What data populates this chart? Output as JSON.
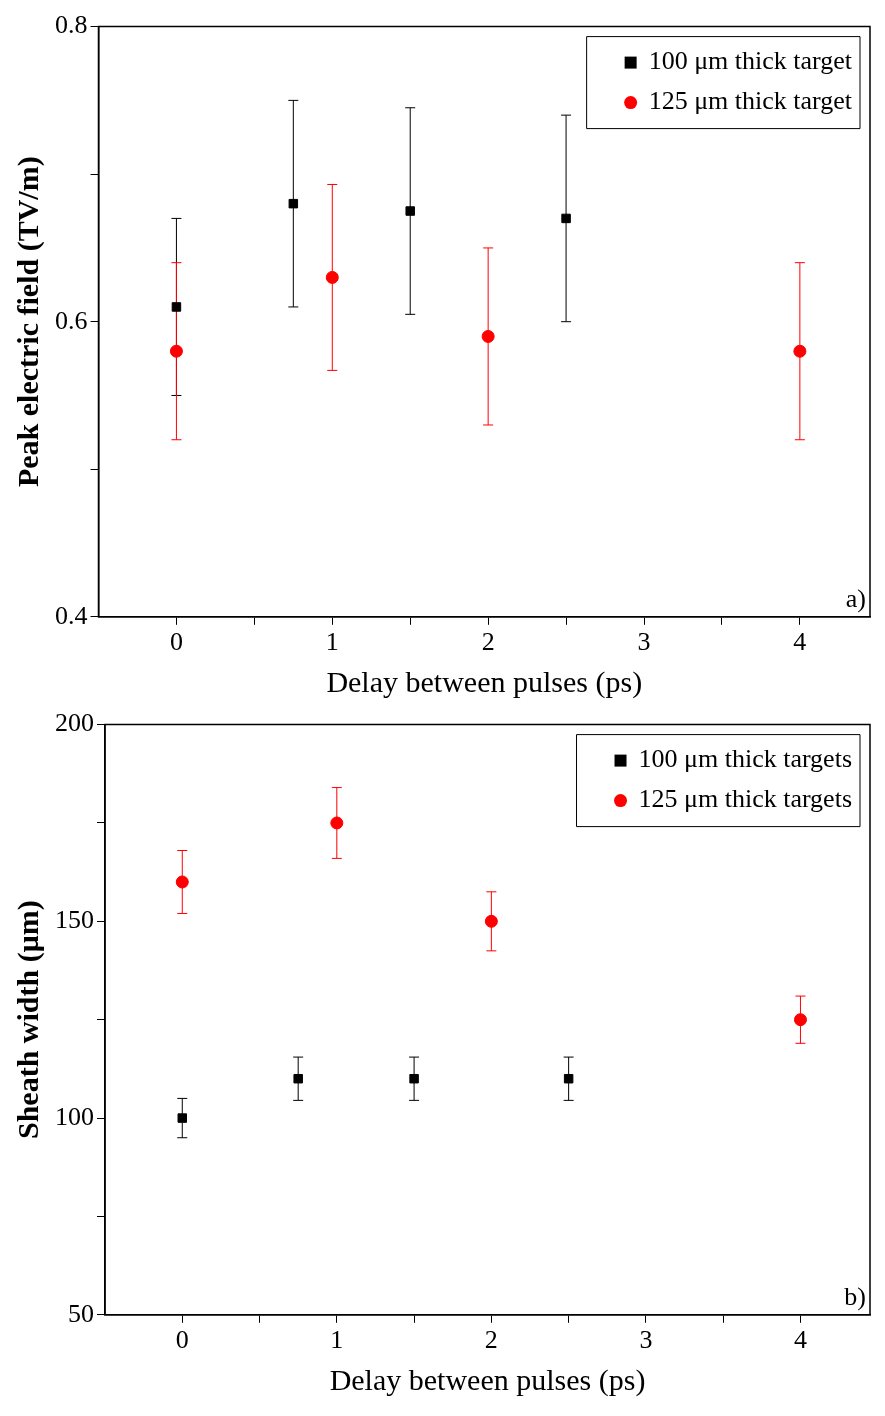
{
  "chart_data": [
    {
      "type": "scatter",
      "xlabel": "Delay between pulses (ps)",
      "ylabel": "Peak electric field (TV/m)",
      "annotations": [
        "a)"
      ],
      "xlim": [
        -0.5,
        4.45
      ],
      "xticks": [
        0,
        {
          "value": 0.5,
          "label": null
        },
        1,
        {
          "value": 1.5,
          "label": null
        },
        2,
        {
          "value": 2.5,
          "label": null
        },
        3,
        {
          "value": 3.5,
          "label": null
        },
        4
      ],
      "ylim": [
        0.4,
        0.8
      ],
      "yticks": [
        0.4,
        {
          "value": 0.5,
          "label": null
        },
        0.6,
        {
          "value": 0.7,
          "label": null
        },
        0.8
      ],
      "grid": false,
      "legend": "top right",
      "series": [
        {
          "name": "100 μm thick target",
          "color": "#000000",
          "marker": "square",
          "x": [
            0,
            0.75,
            1.5,
            2.5
          ],
          "values": [
            0.61,
            0.68,
            0.675,
            0.67
          ],
          "errors": [
            0.06,
            0.07,
            0.07,
            0.07
          ]
        },
        {
          "name": "125 μm thick target",
          "color": "#ff0000",
          "marker": "circle",
          "x": [
            0,
            1,
            2,
            4
          ],
          "values": [
            0.58,
            0.63,
            0.59,
            0.58
          ],
          "errors": [
            0.06,
            0.063,
            0.06,
            0.06
          ]
        }
      ]
    },
    {
      "type": "scatter",
      "xlabel": "Delay between pulses (ps)",
      "ylabel": "Sheath width (μm)",
      "annotations": [
        "b)"
      ],
      "xlim": [
        -0.5,
        4.45
      ],
      "xticks": [
        0,
        {
          "value": 0.5,
          "label": null
        },
        1,
        {
          "value": 1.5,
          "label": null
        },
        2,
        {
          "value": 2.5,
          "label": null
        },
        3,
        {
          "value": 3.5,
          "label": null
        },
        4
      ],
      "ylim": [
        50,
        200
      ],
      "yticks": [
        50,
        {
          "value": 75,
          "label": null
        },
        100,
        {
          "value": 125,
          "label": null
        },
        150,
        {
          "value": 175,
          "label": null
        },
        200
      ],
      "grid": false,
      "legend": "top right",
      "series": [
        {
          "name": "100 μm thick targets",
          "color": "#000000",
          "marker": "square",
          "x": [
            0,
            0.75,
            1.5,
            2.5
          ],
          "values": [
            100,
            110,
            110,
            110
          ],
          "errors": [
            5,
            5.5,
            5.5,
            5.5
          ]
        },
        {
          "name": "125 μm thick targets",
          "color": "#ff0000",
          "marker": "circle",
          "x": [
            0,
            1,
            2,
            4
          ],
          "values": [
            160,
            175,
            150,
            125
          ],
          "errors": [
            8,
            9,
            7.5,
            6
          ]
        }
      ]
    }
  ]
}
